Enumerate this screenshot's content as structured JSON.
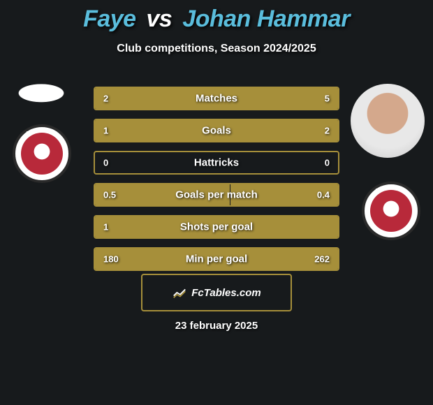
{
  "header": {
    "player1": "Faye",
    "vs": "vs",
    "player2": "Johan Hammar",
    "player1_color": "#5abddc",
    "player2_color": "#5abddc",
    "vs_color": "#ffffff"
  },
  "subtitle": "Club competitions, Season 2024/2025",
  "styling": {
    "background_color": "#171a1c",
    "bar_border_color": "#a68f3a",
    "bar_fill_color": "#a68f3a",
    "text_color": "#ffffff",
    "title_fontsize": 34,
    "subtitle_fontsize": 16,
    "label_fontsize": 15,
    "value_fontsize": 13
  },
  "team_badge": {
    "name": "REDHAWKS",
    "bg_color": "#ffffff",
    "inner_color": "#b8293a"
  },
  "stats": [
    {
      "label": "Matches",
      "left_value": "2",
      "right_value": "5",
      "left_pct": 28.6,
      "right_pct": 71.4
    },
    {
      "label": "Goals",
      "left_value": "1",
      "right_value": "2",
      "left_pct": 33.3,
      "right_pct": 66.7
    },
    {
      "label": "Hattricks",
      "left_value": "0",
      "right_value": "0",
      "left_pct": 0,
      "right_pct": 0
    },
    {
      "label": "Goals per match",
      "left_value": "0.5",
      "right_value": "0.4",
      "left_pct": 55.6,
      "right_pct": 44.4
    },
    {
      "label": "Shots per goal",
      "left_value": "1",
      "right_value": "",
      "left_pct": 100,
      "right_pct": 0
    },
    {
      "label": "Min per goal",
      "left_value": "180",
      "right_value": "262",
      "left_pct": 40.7,
      "right_pct": 59.3
    }
  ],
  "footer": {
    "brand": "FcTables.com",
    "date": "23 february 2025"
  }
}
